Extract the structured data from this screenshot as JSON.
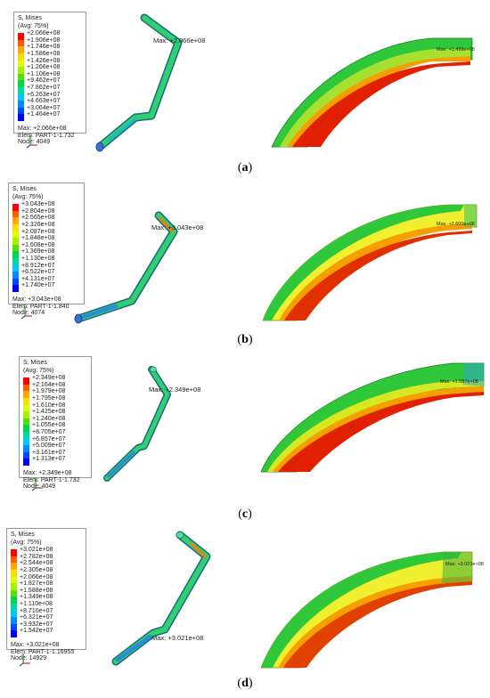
{
  "colors": {
    "scale": [
      "#ff0000",
      "#ff5a00",
      "#ffaa00",
      "#ffdd00",
      "#e0ff00",
      "#a6f000",
      "#55e000",
      "#00d64a",
      "#00d7a8",
      "#00c8ff",
      "#008cff",
      "#0048ff",
      "#0000ff"
    ]
  },
  "panels": [
    {
      "caption_letter": "a",
      "legend": {
        "title": "S, Mises",
        "avg": "(Avg: 75%)",
        "values": [
          "+2.066e+08",
          "+1.906e+08",
          "+1.746e+08",
          "+1.586e+08",
          "+1.426e+08",
          "+1.266e+08",
          "+1.106e+08",
          "+9.462e+07",
          "+7.862e+07",
          "+6.263e+07",
          "+4.663e+07",
          "+3.064e+07",
          "+1.464e+07"
        ],
        "max": "Max: +2.066e+08",
        "elem": "Elem: PART-1-1.732",
        "node": "Node: 4049"
      },
      "pipe_max_label": "Max: +2.066e+08",
      "zoom_max_label": "Max: +1.499e+08"
    },
    {
      "caption_letter": "b",
      "legend": {
        "title": "S, Mises",
        "avg": "(Avg: 75%)",
        "values": [
          "+3.043e+08",
          "+2.804e+08",
          "+2.565e+08",
          "+2.326e+08",
          "+2.087e+08",
          "+1.848e+08",
          "+1.608e+08",
          "+1.369e+08",
          "+1.130e+08",
          "+8.912e+07",
          "+6.522e+07",
          "+4.131e+07",
          "+1.740e+07"
        ],
        "max": "Max: +3.043e+08",
        "elem": "Elem: PART-1-1.840",
        "node": "Node: 4074"
      },
      "pipe_max_label": "Max: +3.043e+08",
      "zoom_max_label": "Max: +2.600e+08"
    },
    {
      "caption_letter": "c",
      "legend": {
        "title": "S, Mises",
        "avg": "(Avg: 75%)",
        "values": [
          "+2.349e+08",
          "+2.164e+08",
          "+1.979e+08",
          "+1.795e+08",
          "+1.610e+08",
          "+1.425e+08",
          "+1.240e+08",
          "+1.055e+08",
          "+8.705e+07",
          "+6.857e+07",
          "+5.009e+07",
          "+3.161e+07",
          "+1.313e+07"
        ],
        "max": "Max: +2.349e+08",
        "elem": "Elem: PART-1-1.732",
        "node": "Node: 4049"
      },
      "pipe_max_label": "Max: +2.349e+08",
      "zoom_max_label": "Max: +1.687e+08"
    },
    {
      "caption_letter": "d",
      "legend": {
        "title": "S, Mises",
        "avg": "(Avg: 75%)",
        "values": [
          "+3.021e+08",
          "+2.782e+08",
          "+2.544e+08",
          "+2.305e+08",
          "+2.066e+08",
          "+1.827e+08",
          "+1.588e+08",
          "+1.349e+08",
          "+1.110e+08",
          "+8.710e+07",
          "+6.321e+07",
          "+3.932e+07",
          "+1.542e+07"
        ],
        "max": "Max: +3.021e+08",
        "elem": "Elem: PART-1-1.16955",
        "node": "Node: 14929"
      },
      "pipe_max_label": "Max: +3.021e+08",
      "zoom_max_label": "Max: +3.021e+08"
    }
  ]
}
